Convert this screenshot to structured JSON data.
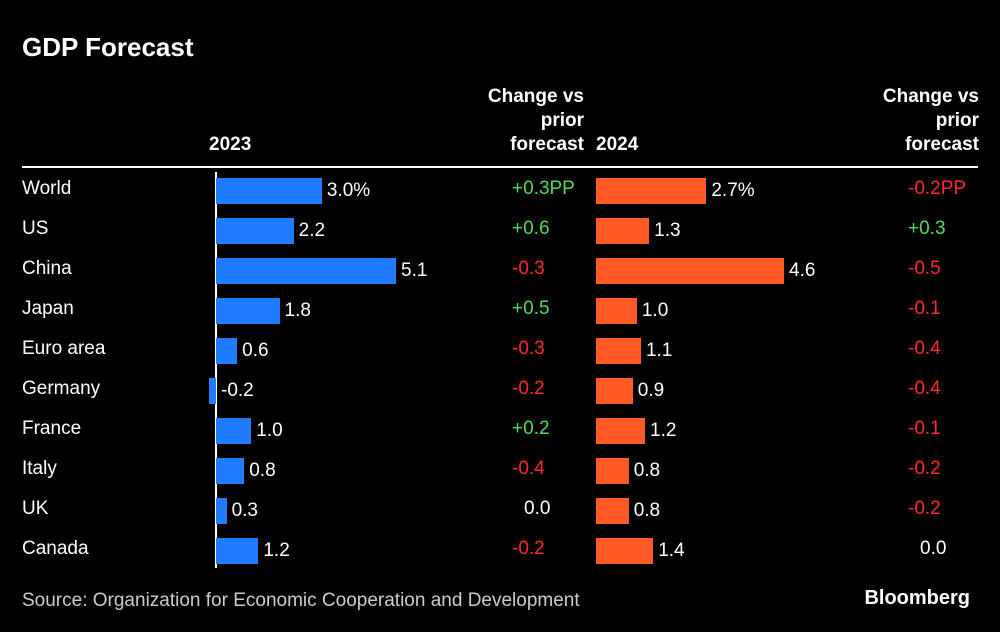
{
  "chart_data": {
    "type": "bar",
    "title": "GDP Forecast",
    "categories": [
      "World",
      "US",
      "China",
      "Japan",
      "Euro area",
      "Germany",
      "France",
      "Italy",
      "UK",
      "Canada"
    ],
    "change_header": "Change vs prior forecast",
    "positive_color": "#4ade5a",
    "negative_color": "#ff2a2a",
    "zero_color": "#ffffff",
    "series": [
      {
        "name": "2023",
        "color": "#1f7bff",
        "xlim": [
          0,
          5.1
        ],
        "values": [
          3.0,
          2.2,
          5.1,
          1.8,
          0.6,
          -0.2,
          1.0,
          0.8,
          0.3,
          1.2
        ],
        "value_labels": [
          "3.0%",
          "2.2",
          "5.1",
          "1.8",
          "0.6",
          "-0.2",
          "1.0",
          "0.8",
          "0.3",
          "1.2"
        ],
        "changes": [
          0.3,
          0.6,
          -0.3,
          0.5,
          -0.3,
          -0.2,
          0.2,
          -0.4,
          0,
          -0.2
        ],
        "change_labels": [
          "+0.3PP",
          "+0.6",
          "-0.3",
          "+0.5",
          "-0.3",
          "-0.2",
          "+0.2",
          "-0.4",
          "0.0",
          "-0.2"
        ]
      },
      {
        "name": "2024",
        "color": "#ff5a26",
        "xlim": [
          0,
          4.6
        ],
        "values": [
          2.7,
          1.3,
          4.6,
          1.0,
          1.1,
          0.9,
          1.2,
          0.8,
          0.8,
          1.4
        ],
        "value_labels": [
          "2.7%",
          "1.3",
          "4.6",
          "1.0",
          "1.1",
          "0.9",
          "1.2",
          "0.8",
          "0.8",
          "1.4"
        ],
        "changes": [
          -0.2,
          0.3,
          -0.5,
          -0.1,
          -0.4,
          -0.4,
          -0.1,
          -0.2,
          -0.2,
          0
        ],
        "change_labels": [
          "-0.2PP",
          "+0.3",
          "-0.5",
          "-0.1",
          "-0.4",
          "-0.4",
          "-0.1",
          "-0.2",
          "-0.2",
          "0.0"
        ]
      }
    ],
    "source": "Source: Organization for Economic Cooperation and Development",
    "credit": "Bloomberg"
  }
}
